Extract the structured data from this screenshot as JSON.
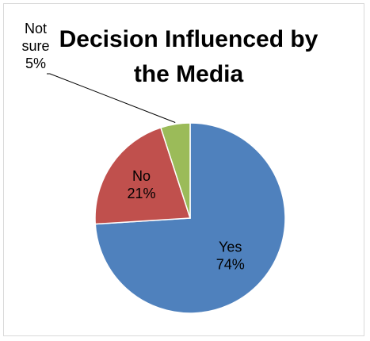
{
  "chart_data": {
    "type": "pie",
    "title": "Decision Influenced by the Media",
    "title_lines": [
      "Decision Influenced by",
      "the Media"
    ],
    "slices": [
      {
        "category": "Yes",
        "value": 74,
        "label": "74%",
        "color": "#4f81bd"
      },
      {
        "category": "No",
        "value": 21,
        "label": "21%",
        "color": "#c0504d"
      },
      {
        "category": "Not sure",
        "value": 5,
        "label": "5%",
        "color": "#9bbb59"
      }
    ],
    "category_lines": {
      "Not sure": [
        "Not",
        "sure"
      ]
    },
    "legend": "none"
  }
}
